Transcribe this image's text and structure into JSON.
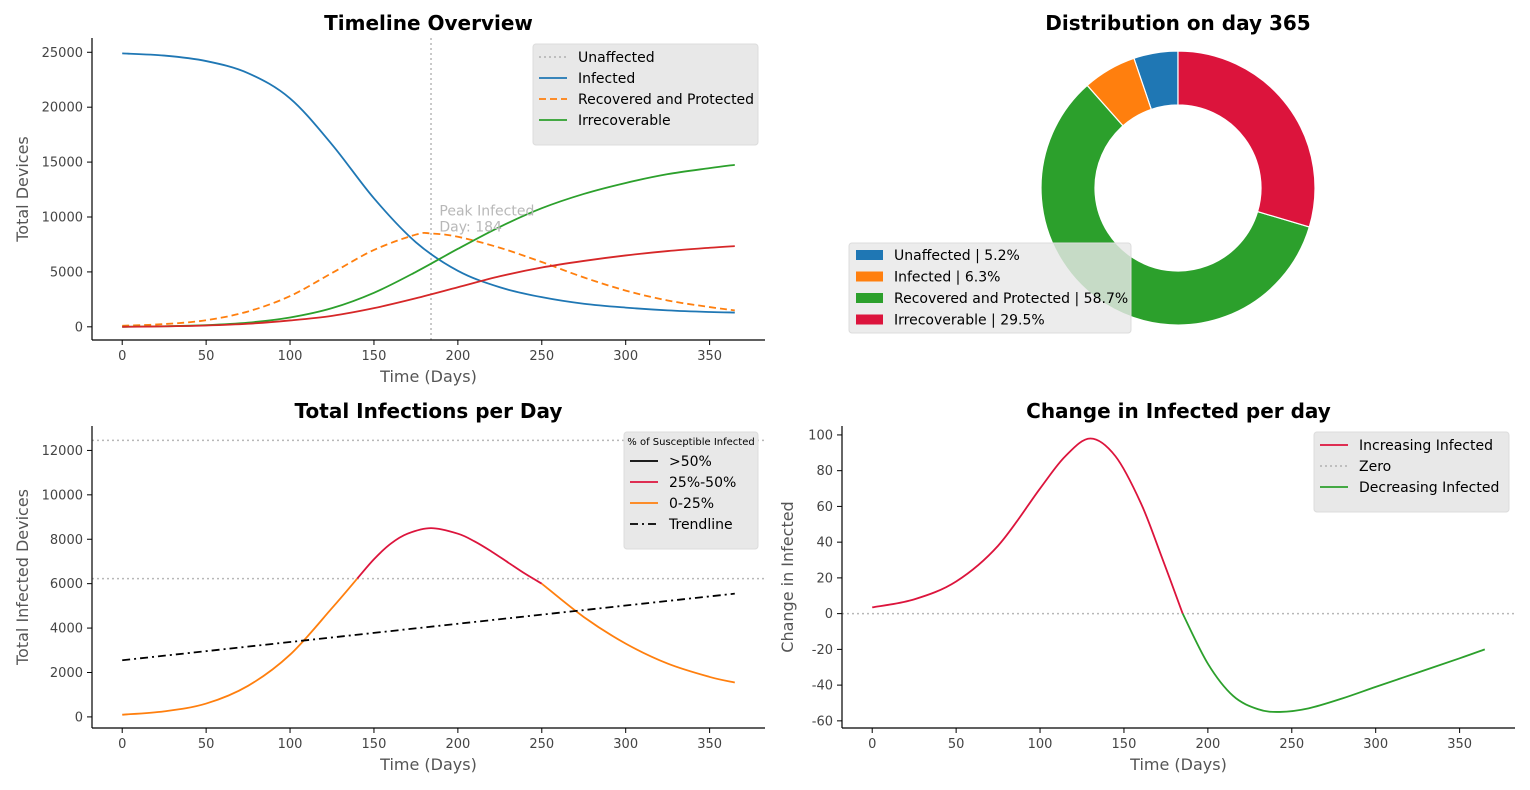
{
  "chart_data": [
    {
      "type": "line",
      "title": "Timeline Overview",
      "xlabel": "Time (Days)",
      "ylabel": "Total Devices",
      "xlim": [
        -18,
        383
      ],
      "ylim": [
        -1200,
        26300
      ],
      "xticks": [
        0,
        50,
        100,
        150,
        200,
        250,
        300,
        350
      ],
      "yticks": [
        0,
        5000,
        10000,
        15000,
        20000,
        25000
      ],
      "legend_position": "top-right",
      "vline": {
        "x": 184,
        "style": "dotted",
        "color": "#b8b8b8"
      },
      "annotation": {
        "lines": [
          "Peak Infected",
          "Day: 184"
        ],
        "x": 189,
        "y": 8700
      },
      "series": [
        {
          "name": "Unaffected",
          "color": "#b8b8b8",
          "style": "dotted",
          "legend_only": true,
          "x": [],
          "y": []
        },
        {
          "name": "Infected",
          "color": "#1f77b4",
          "style": "solid",
          "x": [
            0,
            25,
            50,
            75,
            100,
            125,
            150,
            175,
            200,
            225,
            250,
            275,
            300,
            325,
            350,
            365
          ],
          "y": [
            24900,
            24700,
            24200,
            23100,
            20800,
            16600,
            11700,
            7700,
            5100,
            3600,
            2700,
            2100,
            1750,
            1500,
            1350,
            1300
          ]
        },
        {
          "name": "Recovered and Protected",
          "color": "#ff7f0e",
          "style": "dashed",
          "x": [
            0,
            25,
            50,
            75,
            100,
            125,
            150,
            175,
            184,
            200,
            225,
            250,
            275,
            300,
            325,
            350,
            365
          ],
          "y": [
            100,
            250,
            600,
            1400,
            2800,
            4900,
            7000,
            8400,
            8500,
            8200,
            7200,
            5900,
            4500,
            3300,
            2400,
            1800,
            1500
          ]
        },
        {
          "name": "Irrecoverable",
          "color": "#2ca02c",
          "style": "solid",
          "x": [
            0,
            25,
            50,
            75,
            100,
            125,
            150,
            175,
            200,
            225,
            250,
            275,
            300,
            325,
            350,
            365
          ],
          "y": [
            0,
            50,
            150,
            380,
            850,
            1700,
            3100,
            5000,
            7100,
            9100,
            10800,
            12100,
            13100,
            13900,
            14450,
            14750
          ]
        },
        {
          "name": "",
          "color": "#d62728",
          "style": "solid",
          "x": [
            0,
            25,
            50,
            75,
            100,
            125,
            150,
            175,
            200,
            225,
            250,
            275,
            300,
            325,
            350,
            365
          ],
          "y": [
            0,
            40,
            120,
            280,
            580,
            1000,
            1700,
            2600,
            3600,
            4600,
            5400,
            6000,
            6500,
            6900,
            7200,
            7350
          ]
        }
      ]
    },
    {
      "type": "pie",
      "title": "Distribution on day 365",
      "donut": true,
      "legend_position": "lower-left",
      "slices": [
        {
          "label": "Unaffected | 5.2%",
          "value": 5.2,
          "color": "#1f77b4"
        },
        {
          "label": "Infected | 6.3%",
          "value": 6.3,
          "color": "#ff7f0e"
        },
        {
          "label": "Recovered and Protected | 58.7%",
          "value": 58.7,
          "color": "#2ca02c"
        },
        {
          "label": "Irrecoverable | 29.5%",
          "value": 29.5,
          "color": "#dc143c"
        }
      ]
    },
    {
      "type": "line",
      "title": "Total Infections per Day",
      "xlabel": "Time (Days)",
      "ylabel": "Total Infected Devices",
      "xlim": [
        -18,
        383
      ],
      "ylim": [
        -500,
        13100
      ],
      "xticks": [
        0,
        50,
        100,
        150,
        200,
        250,
        300,
        350
      ],
      "yticks": [
        0,
        2000,
        4000,
        6000,
        8000,
        10000,
        12000
      ],
      "legend_position": "top-right",
      "legend_title": "% of Susceptible Infected",
      "hlines": [
        {
          "y": 12450,
          "style": "dotted",
          "color": "#b8b8b8"
        },
        {
          "y": 6225,
          "style": "dotted",
          "color": "#b8b8b8"
        }
      ],
      "series": [
        {
          "name": ">50%",
          "color": "#000000",
          "style": "solid",
          "legend_only": true,
          "x": [],
          "y": []
        },
        {
          "name": "25%-50%",
          "color": "#dc143c",
          "style": "solid",
          "x": [
            140,
            150,
            160,
            170,
            184,
            200,
            210,
            220,
            230,
            240,
            250
          ],
          "y": [
            6225,
            7100,
            7800,
            8250,
            8500,
            8250,
            7900,
            7450,
            6950,
            6450,
            6000
          ]
        },
        {
          "name": "0-25%",
          "color": "#ff7f0e",
          "style": "solid",
          "x": [
            0,
            25,
            50,
            75,
            100,
            125,
            140
          ],
          "y": [
            100,
            250,
            600,
            1400,
            2800,
            4900,
            6225
          ]
        },
        {
          "name": "",
          "color": "#ff7f0e",
          "style": "solid",
          "x": [
            250,
            275,
            300,
            325,
            350,
            365
          ],
          "y": [
            6000,
            4500,
            3300,
            2400,
            1800,
            1550
          ]
        },
        {
          "name": "Trendline",
          "color": "#000000",
          "style": "dashdot",
          "x": [
            0,
            365
          ],
          "y": [
            2550,
            5550
          ]
        }
      ]
    },
    {
      "type": "line",
      "title": "Change in Infected per day",
      "xlabel": "Time (Days)",
      "ylabel": "Change in Infected",
      "xlim": [
        -18,
        383
      ],
      "ylim": [
        -64,
        105
      ],
      "xticks": [
        0,
        50,
        100,
        150,
        200,
        250,
        300,
        350
      ],
      "yticks": [
        -60,
        -40,
        -20,
        0,
        20,
        40,
        60,
        80,
        100
      ],
      "legend_position": "top-right",
      "hlines": [
        {
          "y": 0,
          "style": "dotted",
          "color": "#b8b8b8"
        }
      ],
      "series": [
        {
          "name": "Increasing Infected",
          "color": "#dc143c",
          "style": "solid",
          "x": [
            0,
            25,
            50,
            75,
            100,
            115,
            130,
            145,
            160,
            172,
            185
          ],
          "y": [
            3.5,
            8,
            18,
            38,
            70,
            88,
            98,
            88,
            62,
            33,
            0
          ]
        },
        {
          "name": "Zero",
          "color": "#b8b8b8",
          "style": "dotted",
          "legend_only": true,
          "x": [],
          "y": []
        },
        {
          "name": "Decreasing  Infected",
          "color": "#2ca02c",
          "style": "solid",
          "x": [
            185,
            200,
            215,
            230,
            243,
            260,
            280,
            300,
            325,
            350,
            365
          ],
          "y": [
            0,
            -28,
            -46,
            -53.5,
            -55,
            -53,
            -47.5,
            -41,
            -33,
            -25,
            -20
          ]
        }
      ]
    }
  ]
}
